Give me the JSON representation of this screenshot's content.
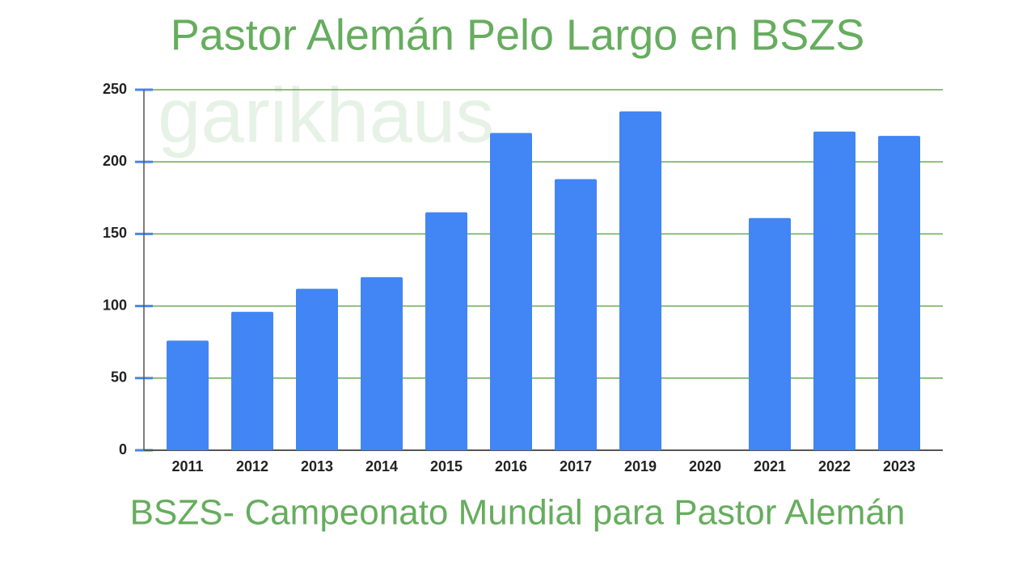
{
  "chart_data": {
    "type": "bar",
    "title": "Pastor Alemán Pelo Largo en BSZS",
    "subtitle": "BSZS- Campeonato Mundial para Pastor Alemán",
    "watermark": "garikhaus",
    "categories": [
      "2011",
      "2012",
      "2013",
      "2014",
      "2015",
      "2016",
      "2017",
      "2019",
      "2020",
      "2021",
      "2022",
      "2023"
    ],
    "values": [
      76,
      96,
      112,
      120,
      165,
      220,
      188,
      235,
      null,
      161,
      221,
      218
    ],
    "color": "#4285f4",
    "grid_color": "#6aa84f",
    "ylim": [
      0,
      250
    ],
    "yticks": [
      0,
      50,
      100,
      150,
      200,
      250
    ],
    "grid": true
  }
}
